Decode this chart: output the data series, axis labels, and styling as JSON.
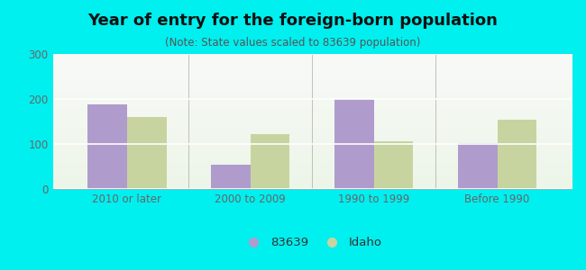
{
  "title": "Year of entry for the foreign-born population",
  "subtitle": "(Note: State values scaled to 83639 population)",
  "categories": [
    "2010 or later",
    "2000 to 2009",
    "1990 to 1999",
    "Before 1990"
  ],
  "values_83639": [
    188,
    55,
    200,
    102
  ],
  "values_idaho": [
    160,
    122,
    107,
    155
  ],
  "bar_color_83639": "#b09ccc",
  "bar_color_idaho": "#c8d4a0",
  "background_outer": "#00efef",
  "background_plot_top": "#f0f4ee",
  "background_plot_bottom": "#edf5e8",
  "ylim": [
    0,
    300
  ],
  "yticks": [
    0,
    100,
    200,
    300
  ],
  "legend_labels": [
    "83639",
    "Idaho"
  ],
  "title_fontsize": 13,
  "subtitle_fontsize": 8.5,
  "tick_fontsize": 8.5,
  "legend_fontsize": 9.5,
  "bar_width": 0.32
}
